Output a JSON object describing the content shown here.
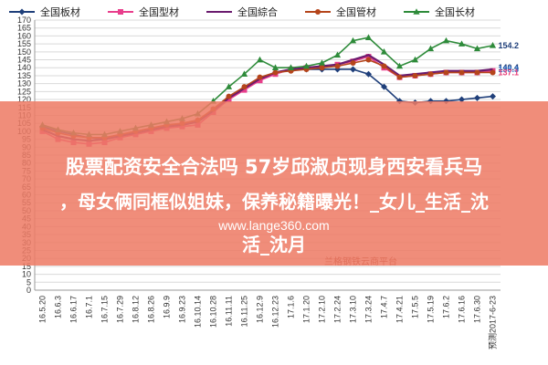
{
  "chart_data": {
    "type": "line",
    "title": "",
    "xlabel": "",
    "ylabel": "",
    "ylim": [
      0,
      170
    ],
    "y_ticks": [
      0,
      5,
      10,
      15,
      20,
      25,
      30,
      35,
      40,
      45,
      50,
      55,
      60,
      65,
      70,
      75,
      80,
      85,
      90,
      95,
      100,
      105,
      110,
      115,
      120,
      125,
      130,
      135,
      140,
      145,
      150,
      155,
      160,
      165,
      170
    ],
    "grid": "horizontal",
    "legend_position": "top",
    "categories": [
      "16.5.20",
      "16.6.3",
      "16.6.17",
      "16.7.1",
      "16.7.15",
      "16.7.29",
      "16.8.12",
      "16.8.26",
      "16.9.9",
      "16.9.23",
      "16.10.14",
      "16.10.28",
      "16.11.11",
      "16.11.25",
      "16.12.9",
      "16.12.23",
      "17.1.6",
      "17.1.20",
      "17.2.10",
      "17.2.24",
      "17.3.10",
      "17.3.24",
      "17.4.7",
      "17.4.21",
      "17.5.5",
      "17.5.19",
      "17.6.2",
      "17.6.16",
      "17.6.30",
      "预测2017-6-23"
    ],
    "series": [
      {
        "name": "全国板材",
        "color": "#1f3f7a",
        "marker": "diamond",
        "values": [
          103,
          100,
          98,
          96,
          95,
          97,
          99,
          101,
          103,
          105,
          107,
          113,
          121,
          127,
          133,
          137,
          139,
          139,
          139,
          139,
          139,
          136,
          128,
          119,
          118,
          119,
          119,
          120,
          121,
          122
        ]
      },
      {
        "name": "全国型材",
        "color": "#e83e8c",
        "marker": "square",
        "values": [
          100,
          95,
          93,
          92,
          93,
          96,
          98,
          100,
          102,
          103,
          104,
          112,
          120,
          126,
          132,
          136,
          139,
          140,
          141,
          142,
          144,
          147,
          140,
          134,
          135,
          136,
          137,
          137,
          137,
          138
        ]
      },
      {
        "name": "全国綜合",
        "color": "#6a1b6e",
        "marker": "none",
        "values": [
          101,
          97,
          95,
          94,
          95,
          97,
          99,
          101,
          103,
          104,
          106,
          113,
          121,
          127,
          133,
          137,
          139,
          140,
          141,
          142,
          145,
          148,
          142,
          135,
          136,
          137,
          138,
          138,
          138,
          139
        ]
      },
      {
        "name": "全国管材",
        "color": "#b5451b",
        "marker": "circle",
        "values": [
          102,
          99,
          97,
          96,
          96,
          98,
          100,
          102,
          104,
          105,
          107,
          114,
          122,
          128,
          134,
          137,
          138,
          139,
          140,
          141,
          143,
          145,
          141,
          134,
          135,
          136,
          137,
          137,
          137,
          137
        ]
      },
      {
        "name": "全国长材",
        "color": "#2e8b3a",
        "marker": "triangle",
        "values": [
          104,
          101,
          99,
          98,
          98,
          100,
          102,
          104,
          106,
          108,
          111,
          119,
          128,
          136,
          145,
          140,
          140,
          141,
          143,
          148,
          157,
          159,
          150,
          141,
          145,
          152,
          157,
          155,
          152,
          154
        ]
      }
    ],
    "end_labels": [
      {
        "text": "154.2",
        "color": "#1f3f7a"
      },
      {
        "text": "140.4",
        "color": "#1f3f7a"
      },
      {
        "text": "138.3",
        "color": "#2e6fc9"
      },
      {
        "text": "137.1",
        "color": "#e8407a"
      }
    ]
  },
  "overlay": {
    "line1": "股票配资安全合法吗 57岁邱淑贞现身西安看兵马",
    "line2": "，母女俩同框似姐妹，保养秘籍曝光！_女儿_生活_沈",
    "url": "www.lange360.com",
    "line3": "活_沈月"
  },
  "credit": "兰格钢铁云商平台"
}
